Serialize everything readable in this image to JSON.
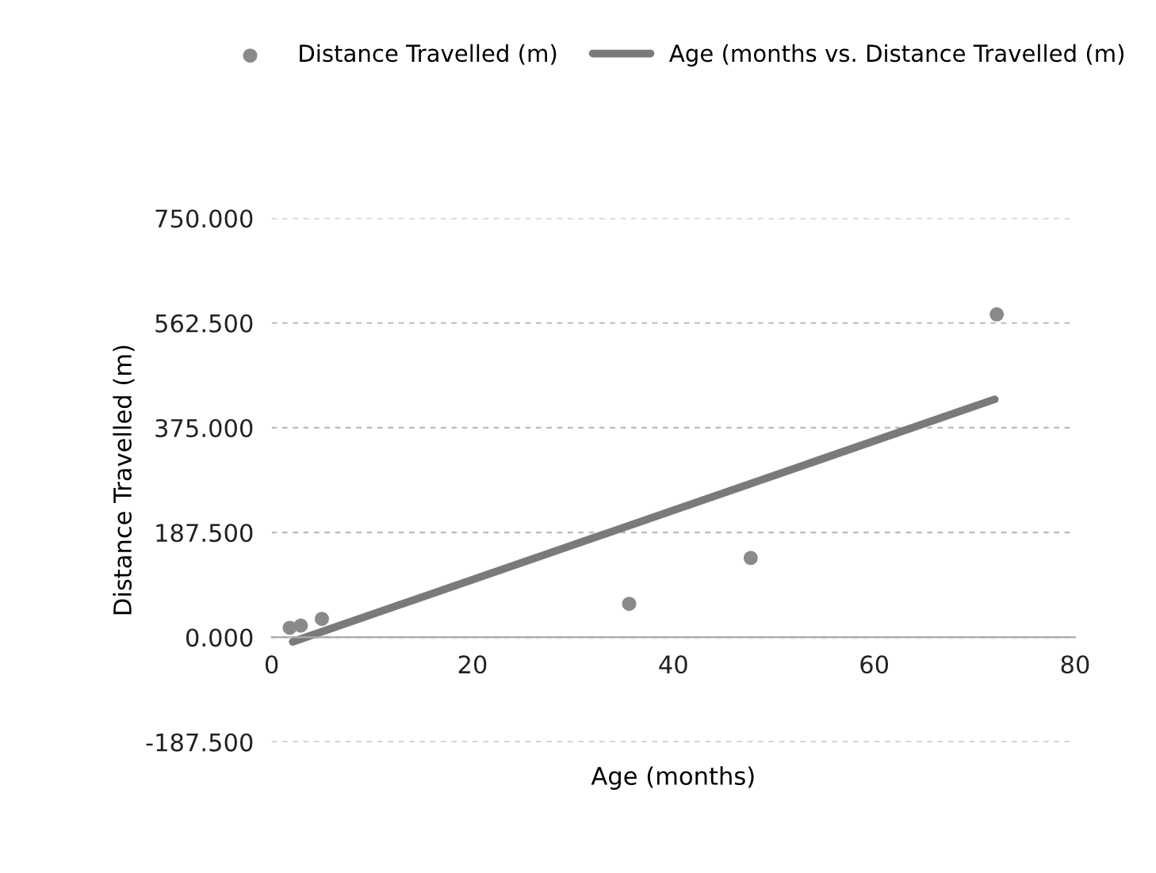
{
  "chart_data": {
    "type": "scatter",
    "xlabel": "Age (months)",
    "ylabel": "Distance Travelled (m)",
    "series": [
      {
        "name": "Distance Travelled (m)",
        "color": "#8a8a8a",
        "marker": "circle",
        "x": [
          1.8,
          2.9,
          5.0,
          35.6,
          47.7,
          72.2
        ],
        "values": [
          17,
          21,
          33,
          60,
          142,
          578
        ]
      },
      {
        "name": "Age (months vs. Distance Travelled (m)",
        "type": "line",
        "color": "#7a7a7a",
        "marker": "none",
        "x": [
          2.1,
          72
        ],
        "values": [
          -8,
          426
        ]
      }
    ],
    "xlim": [
      0,
      80
    ],
    "xticks": [
      0,
      20,
      40,
      60,
      80
    ],
    "ylim": [
      -187.5,
      750
    ],
    "yticks": [
      {
        "value": -187.5,
        "label": "-187.500"
      },
      {
        "value": 0,
        "label": "0.000"
      },
      {
        "value": 187.5,
        "label": "187.500"
      },
      {
        "value": 375,
        "label": "375.000"
      },
      {
        "value": 562.5,
        "label": "562.500"
      },
      {
        "value": 750,
        "label": "750.000"
      }
    ],
    "grid": "y",
    "legend": "top"
  }
}
